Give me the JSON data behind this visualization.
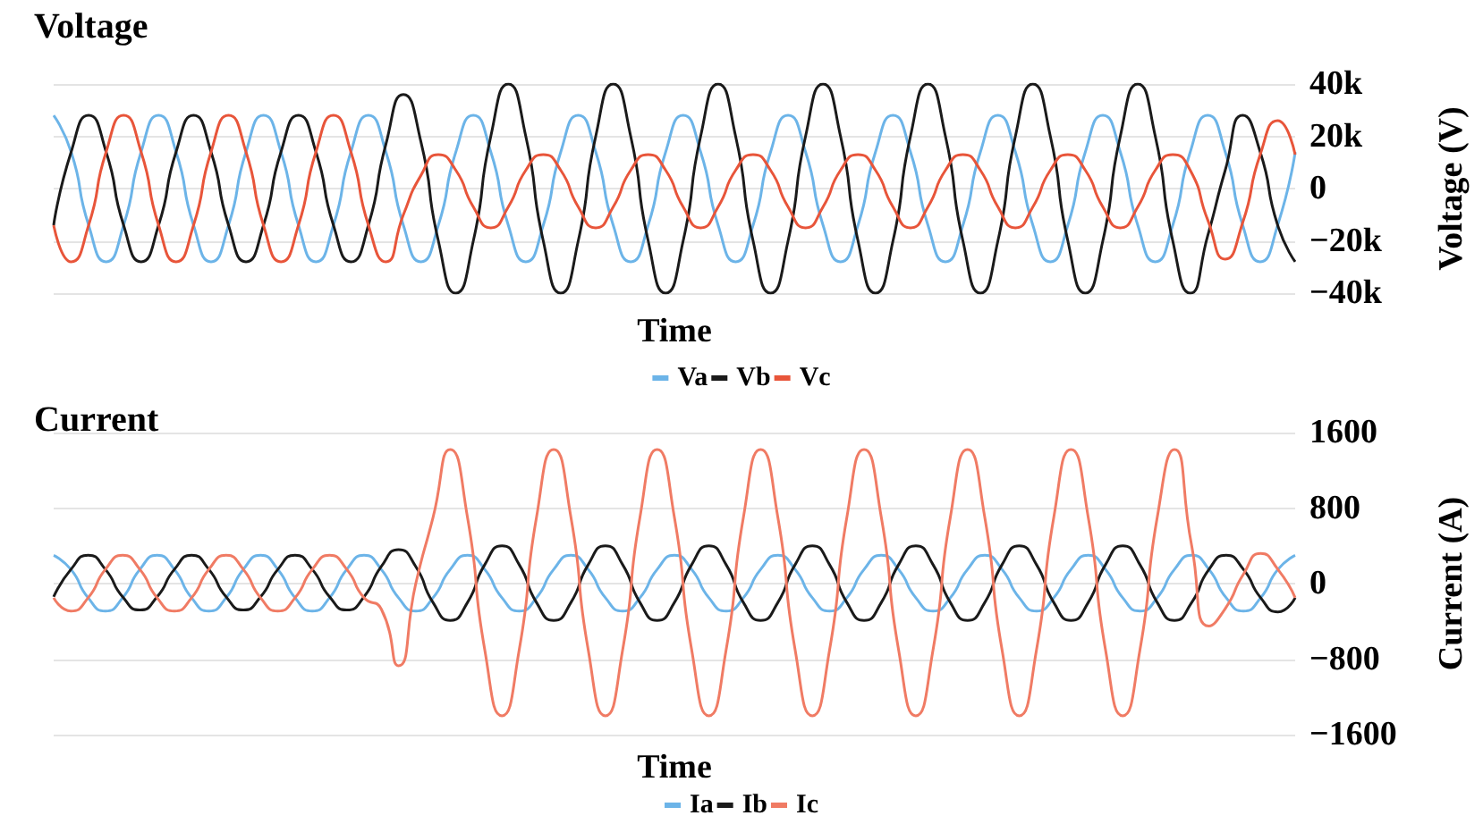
{
  "chart_data": [
    {
      "type": "line",
      "title": "Voltage",
      "xlabel": "Time",
      "ylabel": "Voltage (V)",
      "legend": "bottom",
      "grid": "y",
      "marker": "none",
      "tick_labels": "y",
      "categories": [
        null,
        null,
        null,
        null,
        null,
        null,
        null,
        null,
        null,
        null,
        null,
        null,
        null,
        null,
        null,
        null,
        null,
        null,
        null,
        null,
        null,
        null,
        null,
        null,
        null,
        null,
        null,
        null,
        null,
        null,
        null,
        null,
        null,
        null,
        null,
        null,
        null,
        null,
        null,
        null,
        null,
        null,
        null,
        null,
        null,
        null,
        null,
        null,
        null,
        null,
        null,
        null,
        null,
        null,
        null,
        null,
        null,
        null,
        null,
        null,
        null,
        null,
        null,
        null,
        null,
        null,
        null,
        null,
        null,
        null,
        null,
        null
      ],
      "ylim": [
        -40000,
        40000
      ],
      "yticks": [
        {
          "value": 40000,
          "label": "40k"
        },
        {
          "value": 20000,
          "label": "20k"
        },
        0,
        {
          "value": -20000,
          "label": "−20k"
        },
        {
          "value": -40000,
          "label": "−40k"
        }
      ],
      "series": [
        {
          "name": "Va",
          "color": "#6cb4e8",
          "values": [
            28000,
            14000,
            -14000,
            -28000,
            -14000,
            14000,
            28000,
            14000,
            -14000,
            -28000,
            -14000,
            14000,
            28000,
            14000,
            -14000,
            -28000,
            -14000,
            14000,
            28000,
            14000,
            -14000,
            -28000,
            -14000,
            14000,
            28000,
            14000,
            -14000,
            -28000,
            -14000,
            14000,
            28000,
            14000,
            -14000,
            -28000,
            -14000,
            14000,
            28000,
            14000,
            -14000,
            -28000,
            -14000,
            14000,
            28000,
            14000,
            -14000,
            -28000,
            -14000,
            14000,
            28000,
            14000,
            -14000,
            -28000,
            -14000,
            14000,
            28000,
            14000,
            -14000,
            -28000,
            -14000,
            14000,
            28000,
            14000,
            -14000,
            -28000,
            -14000,
            14000,
            28000,
            14000,
            -14000,
            -28000,
            -14000,
            14000
          ]
        },
        {
          "name": "Vb",
          "color": "#1a1a1a",
          "values": [
            -14000,
            14000,
            28000,
            14000,
            -14000,
            -28000,
            -14000,
            14000,
            28000,
            14000,
            -14000,
            -28000,
            -14000,
            14000,
            28000,
            14000,
            -14000,
            -28000,
            -14000,
            17000,
            36000,
            18000,
            -20000,
            -40000,
            -20000,
            20000,
            40000,
            20000,
            -20000,
            -40000,
            -20000,
            20000,
            40000,
            20000,
            -20000,
            -40000,
            -20000,
            20000,
            40000,
            20000,
            -20000,
            -40000,
            -20000,
            20000,
            40000,
            20000,
            -20000,
            -40000,
            -20000,
            20000,
            40000,
            20000,
            -20000,
            -40000,
            -20000,
            20000,
            40000,
            20000,
            -20000,
            -40000,
            -20000,
            20000,
            40000,
            20000,
            -20000,
            -40000,
            -18000,
            7000,
            28000,
            14000,
            -14000,
            -28000
          ]
        },
        {
          "name": "Vc",
          "color": "#e8553a",
          "values": [
            -14000,
            -28000,
            -14000,
            14000,
            28000,
            14000,
            -14000,
            -28000,
            -14000,
            14000,
            28000,
            14000,
            -14000,
            -28000,
            -14000,
            14000,
            28000,
            14000,
            -14000,
            -28000,
            -10000,
            5000,
            13000,
            7000,
            -7000,
            -15000,
            -7000,
            7000,
            13000,
            7000,
            -7000,
            -15000,
            -7000,
            7000,
            13000,
            7000,
            -7000,
            -15000,
            -7000,
            7000,
            13000,
            7000,
            -7000,
            -15000,
            -7000,
            7000,
            13000,
            7000,
            -7000,
            -15000,
            -7000,
            7000,
            13000,
            7000,
            -7000,
            -15000,
            -7000,
            7000,
            13000,
            7000,
            -7000,
            -15000,
            -7000,
            7000,
            13000,
            7000,
            -12000,
            -27000,
            -13000,
            13000,
            26000,
            13000
          ]
        }
      ]
    },
    {
      "type": "line",
      "title": "Current",
      "xlabel": "Time",
      "ylabel": "Current (A)",
      "legend": "bottom",
      "grid": "y",
      "marker": "none",
      "tick_labels": "y",
      "categories": [
        null,
        null,
        null,
        null,
        null,
        null,
        null,
        null,
        null,
        null,
        null,
        null,
        null,
        null,
        null,
        null,
        null,
        null,
        null,
        null,
        null,
        null,
        null,
        null,
        null,
        null,
        null,
        null,
        null,
        null,
        null,
        null,
        null,
        null,
        null,
        null,
        null,
        null,
        null,
        null,
        null,
        null,
        null,
        null,
        null,
        null,
        null,
        null,
        null,
        null,
        null,
        null,
        null,
        null,
        null,
        null,
        null,
        null,
        null,
        null,
        null,
        null,
        null,
        null,
        null,
        null,
        null,
        null,
        null,
        null,
        null,
        null,
        null
      ],
      "ylim": [
        -1600,
        1600
      ],
      "yticks": [
        1600,
        800,
        0,
        {
          "value": -800,
          "label": "−800"
        },
        {
          "value": -1600,
          "label": "−1600"
        }
      ],
      "series": [
        {
          "name": "Ia",
          "color": "#6cb4e8",
          "values": [
            300,
            150,
            -150,
            -290,
            -150,
            150,
            300,
            150,
            -150,
            -290,
            -150,
            150,
            300,
            150,
            -150,
            -290,
            -150,
            150,
            300,
            150,
            -150,
            -290,
            -150,
            150,
            300,
            150,
            -150,
            -290,
            -150,
            150,
            300,
            150,
            -150,
            -290,
            -150,
            150,
            300,
            150,
            -150,
            -290,
            -150,
            150,
            300,
            150,
            -150,
            -290,
            -150,
            150,
            300,
            150,
            -150,
            -290,
            -150,
            150,
            300,
            150,
            -150,
            -290,
            -150,
            150,
            300,
            150,
            -150,
            -290,
            -150,
            150,
            300,
            150,
            -150,
            -290,
            -150,
            150,
            300
          ]
        },
        {
          "name": "Ib",
          "color": "#1a1a1a",
          "values": [
            -140,
            150,
            300,
            150,
            -140,
            -280,
            -140,
            150,
            300,
            150,
            -140,
            -280,
            -140,
            150,
            300,
            150,
            -140,
            -280,
            -140,
            180,
            360,
            180,
            -200,
            -390,
            -200,
            200,
            400,
            200,
            -200,
            -390,
            -200,
            200,
            400,
            200,
            -200,
            -390,
            -200,
            200,
            400,
            200,
            -200,
            -390,
            -200,
            200,
            400,
            200,
            -200,
            -390,
            -200,
            200,
            400,
            200,
            -200,
            -390,
            -200,
            200,
            400,
            200,
            -200,
            -390,
            -200,
            200,
            400,
            200,
            -200,
            -390,
            -200,
            150,
            300,
            150,
            -150,
            -300,
            -150
          ]
        },
        {
          "name": "Ic",
          "color": "#f07b64",
          "values": [
            -150,
            -290,
            -150,
            150,
            300,
            150,
            -150,
            -290,
            -150,
            150,
            300,
            150,
            -150,
            -290,
            -150,
            150,
            300,
            150,
            -150,
            -270,
            -870,
            0,
            700,
            1420,
            700,
            -700,
            -1400,
            -700,
            700,
            1420,
            700,
            -700,
            -1400,
            -700,
            700,
            1420,
            700,
            -700,
            -1400,
            -700,
            700,
            1420,
            700,
            -700,
            -1400,
            -700,
            700,
            1420,
            700,
            -700,
            -1400,
            -700,
            700,
            1420,
            700,
            -700,
            -1400,
            -700,
            700,
            1420,
            700,
            -700,
            -1400,
            -700,
            700,
            1420,
            400,
            -450,
            -250,
            100,
            320,
            150,
            -150
          ]
        }
      ]
    }
  ]
}
